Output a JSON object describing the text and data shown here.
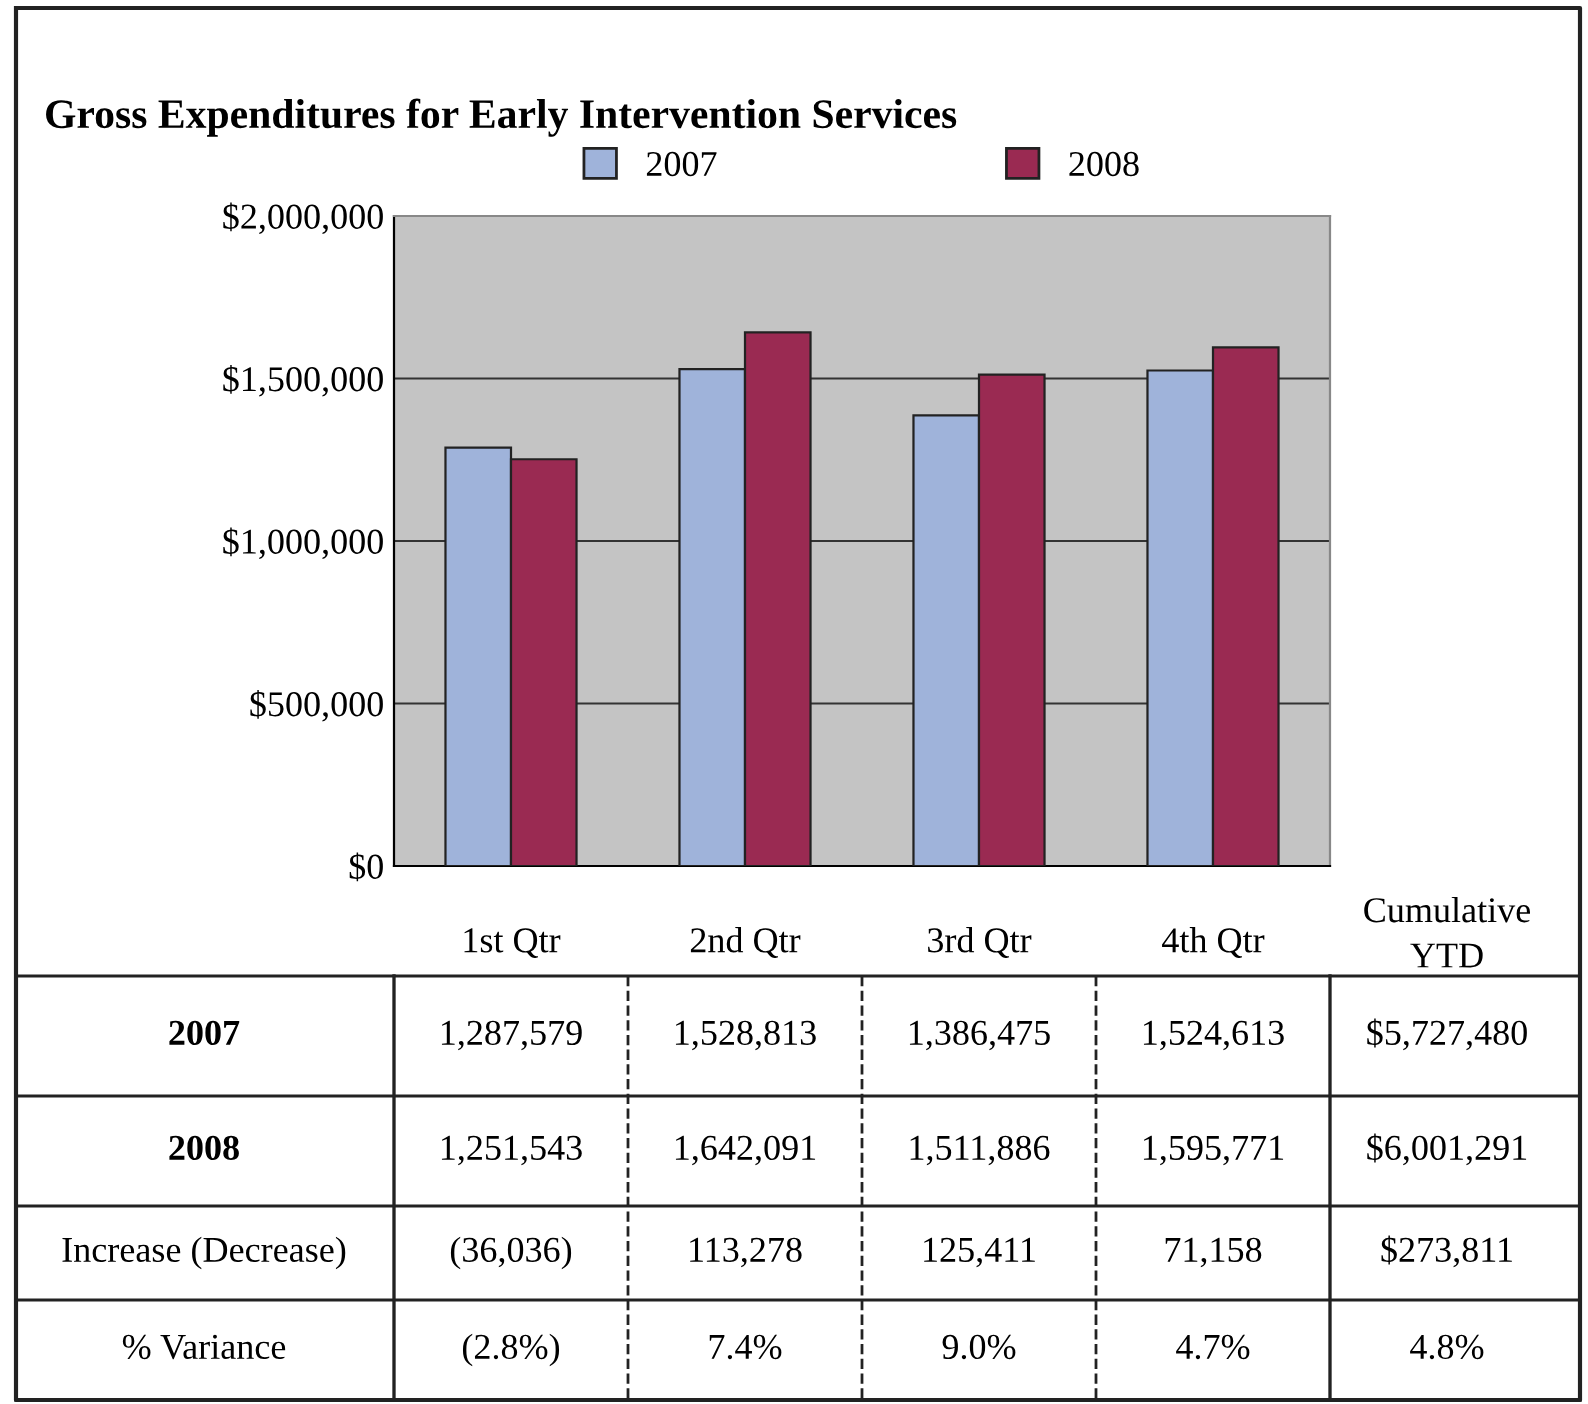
{
  "chart_data": {
    "type": "bar",
    "title": "Gross Expenditures for Early Intervention Services",
    "categories": [
      "1st Qtr",
      "2nd Qtr",
      "3rd Qtr",
      "4th Qtr"
    ],
    "series": [
      {
        "name": "2007",
        "color": "#9fb3da",
        "values": [
          1287579,
          1528813,
          1386475,
          1524613
        ],
        "value_labels": [
          "1,287,579",
          "1,528,813",
          "1,386,475",
          "1,524,613"
        ]
      },
      {
        "name": "2008",
        "color": "#9a2a52",
        "values": [
          1251543,
          1642091,
          1511886,
          1595771
        ],
        "value_labels": [
          "1,251,543",
          "1,642,091",
          "1,511,886",
          "1,595,771"
        ]
      }
    ],
    "ylim": [
      0,
      2000000
    ],
    "yticks": [
      {
        "value": 0,
        "label": "$0"
      },
      {
        "value": 500000,
        "label": "$500,000"
      },
      {
        "value": 1000000,
        "label": "$1,000,000"
      },
      {
        "value": 1500000,
        "label": "$1,500,000"
      },
      {
        "value": 2000000,
        "label": "$2,000,000"
      }
    ],
    "grid": "y",
    "legend": "top",
    "annotations": [
      "Cumulative\nYTD",
      "$5,727,480",
      "$6,001,291",
      "Increase (Decrease)",
      "(36,036)",
      "113,278",
      "125,411",
      "71,158",
      "$273,811",
      "% Variance",
      "(2.8%)",
      "7.4%",
      "9.0%",
      "4.7%",
      "4.8%"
    ]
  }
}
